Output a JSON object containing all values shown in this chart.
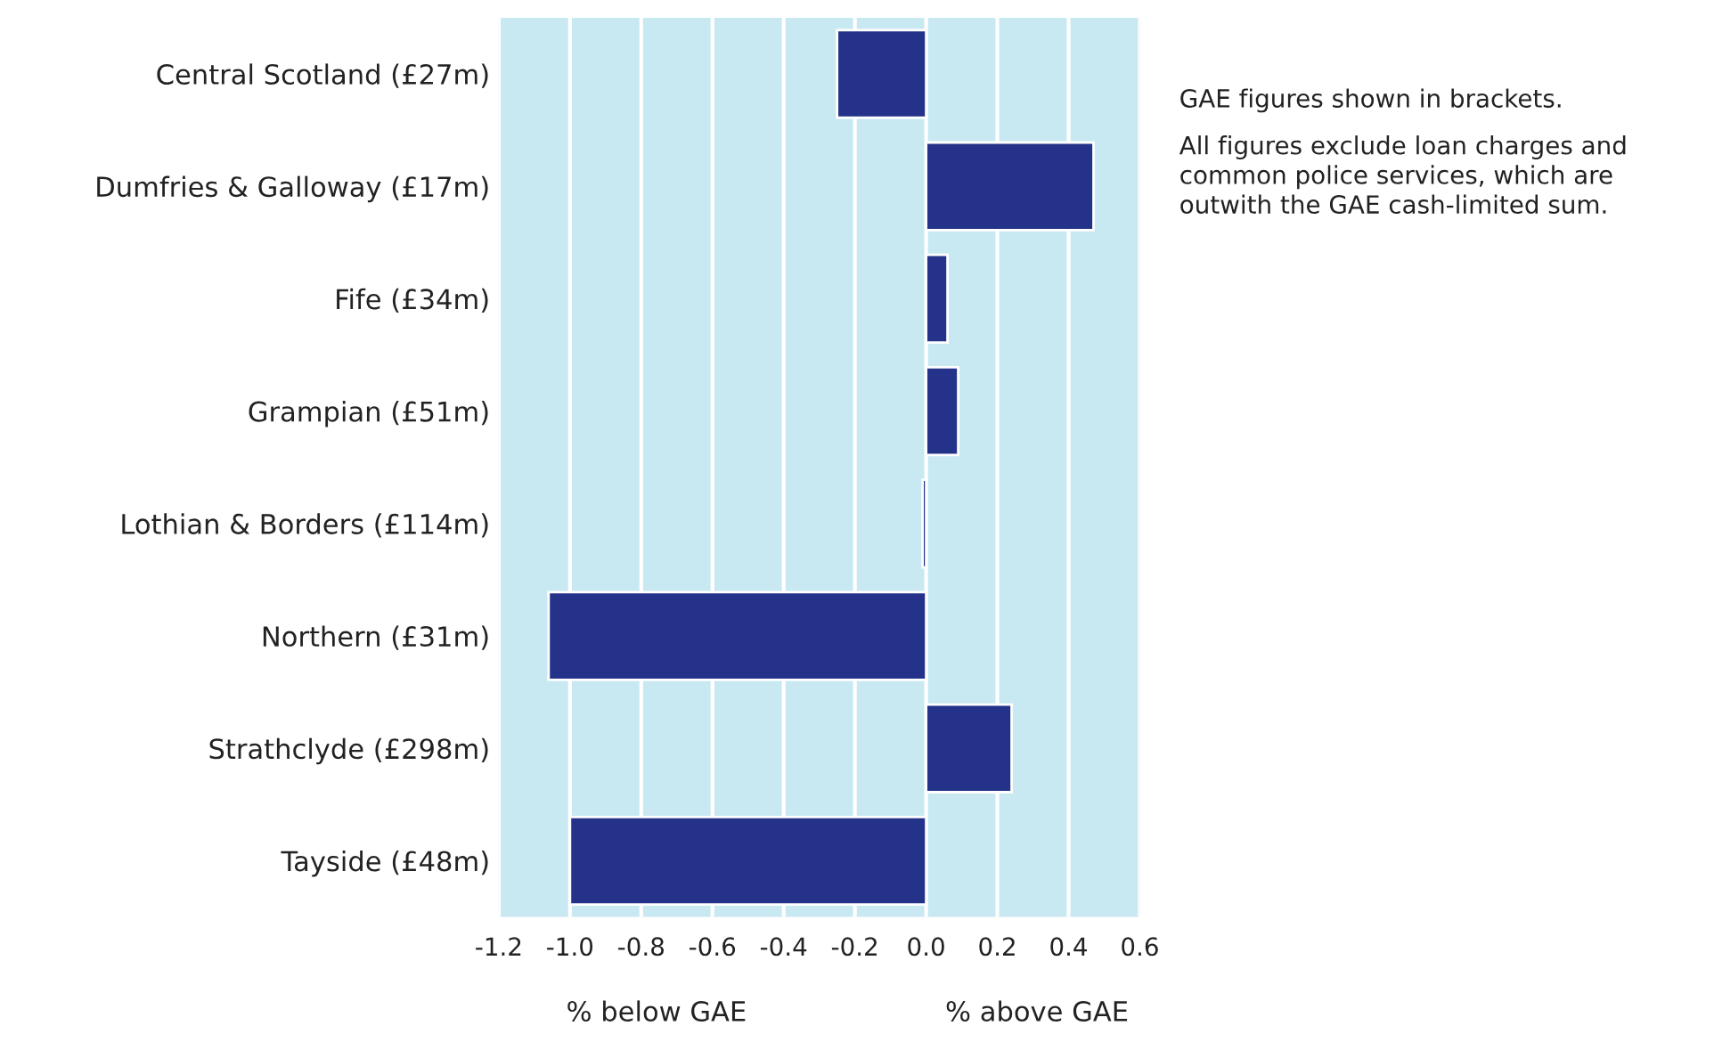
{
  "chart_data": {
    "type": "bar",
    "orientation": "horizontal",
    "categories": [
      "Central Scotland (£27m)",
      "Dumfries & Galloway (£17m)",
      "Fife (£34m)",
      "Grampian (£51m)",
      "Lothian & Borders (£114m)",
      "Northern (£31m)",
      "Strathclyde (£298m)",
      "Tayside (£48m)"
    ],
    "values": [
      -0.25,
      0.47,
      0.06,
      0.09,
      -0.01,
      -1.06,
      0.24,
      -1.0
    ],
    "color": "#243389",
    "xlim": [
      -1.2,
      0.6
    ],
    "xticks": [
      {
        "value": -1.2,
        "label": "-1.2"
      },
      {
        "value": -1.0,
        "label": "-1.0"
      },
      {
        "value": -0.8,
        "label": "-0.8"
      },
      {
        "value": -0.6,
        "label": "-0.6"
      },
      {
        "value": -0.4,
        "label": "-0.4"
      },
      {
        "value": -0.2,
        "label": "-0.2"
      },
      {
        "value": 0.0,
        "label": "0.0"
      },
      {
        "value": 0.2,
        "label": "0.2"
      },
      {
        "value": 0.4,
        "label": "0.4"
      },
      {
        "value": 0.6,
        "label": "0.6"
      }
    ],
    "grid": "x",
    "annotations": [
      "% below GAE",
      "% above GAE",
      "GAE figures shown in brackets.",
      "All figures exclude loan charges and common police services, which are outwith the GAE cash-limited sum."
    ]
  }
}
